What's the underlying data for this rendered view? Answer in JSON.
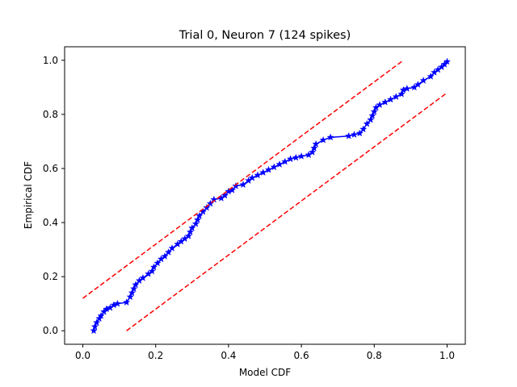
{
  "chart_data": {
    "type": "line",
    "title": "Trial 0, Neuron 7 (124 spikes)",
    "xlabel": "Model CDF",
    "ylabel": "Empirical CDF",
    "xlim": [
      -0.05,
      1.05
    ],
    "ylim": [
      -0.05,
      1.05
    ],
    "x_ticks": [
      "0.0",
      "0.2",
      "0.4",
      "0.6",
      "0.8",
      "1.0"
    ],
    "y_ticks": [
      "0.0",
      "0.2",
      "0.4",
      "0.6",
      "0.8",
      "1.0"
    ],
    "grid": false,
    "series": [
      {
        "color": "#0000ff",
        "marker": "star",
        "style": "solid",
        "points": [
          [
            0.03,
            0.0
          ],
          [
            0.033,
            0.015
          ],
          [
            0.038,
            0.03
          ],
          [
            0.045,
            0.045
          ],
          [
            0.05,
            0.055
          ],
          [
            0.058,
            0.07
          ],
          [
            0.065,
            0.08
          ],
          [
            0.075,
            0.085
          ],
          [
            0.085,
            0.095
          ],
          [
            0.095,
            0.1
          ],
          [
            0.12,
            0.105
          ],
          [
            0.13,
            0.125
          ],
          [
            0.135,
            0.14
          ],
          [
            0.14,
            0.155
          ],
          [
            0.145,
            0.17
          ],
          [
            0.155,
            0.185
          ],
          [
            0.165,
            0.195
          ],
          [
            0.18,
            0.21
          ],
          [
            0.19,
            0.22
          ],
          [
            0.195,
            0.235
          ],
          [
            0.205,
            0.25
          ],
          [
            0.215,
            0.265
          ],
          [
            0.225,
            0.275
          ],
          [
            0.235,
            0.29
          ],
          [
            0.245,
            0.305
          ],
          [
            0.26,
            0.32
          ],
          [
            0.27,
            0.33
          ],
          [
            0.28,
            0.34
          ],
          [
            0.29,
            0.35
          ],
          [
            0.295,
            0.365
          ],
          [
            0.3,
            0.38
          ],
          [
            0.31,
            0.395
          ],
          [
            0.315,
            0.41
          ],
          [
            0.32,
            0.425
          ],
          [
            0.33,
            0.44
          ],
          [
            0.34,
            0.455
          ],
          [
            0.35,
            0.47
          ],
          [
            0.36,
            0.485
          ],
          [
            0.38,
            0.49
          ],
          [
            0.39,
            0.5
          ],
          [
            0.4,
            0.515
          ],
          [
            0.41,
            0.52
          ],
          [
            0.42,
            0.535
          ],
          [
            0.44,
            0.54
          ],
          [
            0.455,
            0.555
          ],
          [
            0.465,
            0.565
          ],
          [
            0.48,
            0.575
          ],
          [
            0.495,
            0.585
          ],
          [
            0.51,
            0.595
          ],
          [
            0.525,
            0.605
          ],
          [
            0.54,
            0.615
          ],
          [
            0.555,
            0.625
          ],
          [
            0.57,
            0.635
          ],
          [
            0.585,
            0.64
          ],
          [
            0.6,
            0.645
          ],
          [
            0.62,
            0.65
          ],
          [
            0.63,
            0.66
          ],
          [
            0.635,
            0.675
          ],
          [
            0.64,
            0.69
          ],
          [
            0.66,
            0.705
          ],
          [
            0.68,
            0.715
          ],
          [
            0.73,
            0.72
          ],
          [
            0.745,
            0.725
          ],
          [
            0.76,
            0.73
          ],
          [
            0.77,
            0.745
          ],
          [
            0.78,
            0.765
          ],
          [
            0.79,
            0.78
          ],
          [
            0.795,
            0.795
          ],
          [
            0.8,
            0.81
          ],
          [
            0.805,
            0.825
          ],
          [
            0.815,
            0.835
          ],
          [
            0.83,
            0.845
          ],
          [
            0.845,
            0.855
          ],
          [
            0.86,
            0.865
          ],
          [
            0.875,
            0.875
          ],
          [
            0.88,
            0.89
          ],
          [
            0.89,
            0.895
          ],
          [
            0.91,
            0.9
          ],
          [
            0.92,
            0.91
          ],
          [
            0.935,
            0.925
          ],
          [
            0.955,
            0.94
          ],
          [
            0.965,
            0.955
          ],
          [
            0.975,
            0.965
          ],
          [
            0.985,
            0.975
          ],
          [
            0.993,
            0.985
          ],
          [
            1.0,
            0.995
          ]
        ]
      },
      {
        "color": "#ff0000",
        "style": "dashed",
        "points": [
          [
            0.0,
            0.12
          ],
          [
            0.88,
            1.0
          ]
        ]
      },
      {
        "color": "#ff0000",
        "style": "dashed",
        "points": [
          [
            0.12,
            0.0
          ],
          [
            1.0,
            0.88
          ]
        ]
      }
    ]
  }
}
